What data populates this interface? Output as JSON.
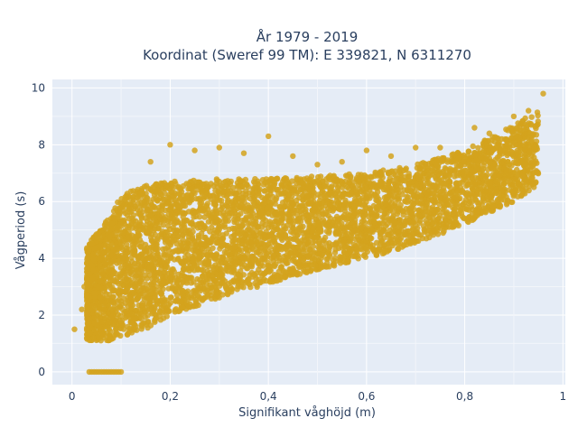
{
  "chart_data": {
    "type": "scatter",
    "title_line1": "År 1979 - 2019",
    "title_line2": "Koordinat (Sweref 99 TM): E 339821, N 6311270",
    "xlabel": "Signifikant våghöjd (m)",
    "ylabel": "Vågperiod (s)",
    "xlim": [
      -0.04,
      1.005
    ],
    "ylim": [
      -0.45,
      10.3
    ],
    "x_ticks": [
      0,
      0.2,
      0.4,
      0.6,
      0.8,
      1
    ],
    "x_tick_labels": [
      "0",
      "0,2",
      "0,4",
      "0,6",
      "0,8",
      "1"
    ],
    "y_ticks": [
      0,
      2,
      4,
      6,
      8,
      10
    ],
    "y_tick_labels": [
      "0",
      "2",
      "4",
      "6",
      "8",
      "10"
    ],
    "grid": true,
    "marker_color": "#d4a31d",
    "plot_background": "#e5ecf6",
    "band": {
      "x": [
        0.03,
        0.05,
        0.08,
        0.1,
        0.15,
        0.2,
        0.3,
        0.4,
        0.5,
        0.6,
        0.7,
        0.8,
        0.9,
        0.95
      ],
      "lower": [
        1.1,
        1.1,
        1.1,
        1.2,
        1.5,
        2.0,
        2.6,
        3.1,
        3.6,
        4.0,
        4.5,
        5.2,
        6.0,
        6.6
      ],
      "upper": [
        4.4,
        4.9,
        5.6,
        6.2,
        6.6,
        6.7,
        6.8,
        6.8,
        6.9,
        7.0,
        7.3,
        7.8,
        8.7,
        9.2
      ]
    },
    "zero_points": {
      "x": [
        0.035,
        0.04,
        0.045,
        0.05,
        0.055,
        0.06,
        0.065,
        0.07,
        0.075,
        0.08,
        0.085,
        0.09,
        0.095,
        0.1
      ],
      "y": [
        0,
        0,
        0,
        0,
        0,
        0,
        0,
        0,
        0,
        0,
        0,
        0,
        0,
        0
      ]
    },
    "outliers": {
      "x": [
        0.16,
        0.2,
        0.25,
        0.3,
        0.35,
        0.4,
        0.45,
        0.5,
        0.55,
        0.6,
        0.65,
        0.7,
        0.75,
        0.82,
        0.85,
        0.9,
        0.93,
        0.96,
        0.005,
        0.02,
        0.025
      ],
      "y": [
        7.4,
        8.0,
        7.8,
        7.9,
        7.7,
        8.3,
        7.6,
        7.3,
        7.4,
        7.8,
        7.6,
        7.9,
        7.9,
        8.6,
        8.4,
        9.0,
        9.2,
        9.8,
        1.5,
        2.2,
        3.0
      ]
    }
  }
}
